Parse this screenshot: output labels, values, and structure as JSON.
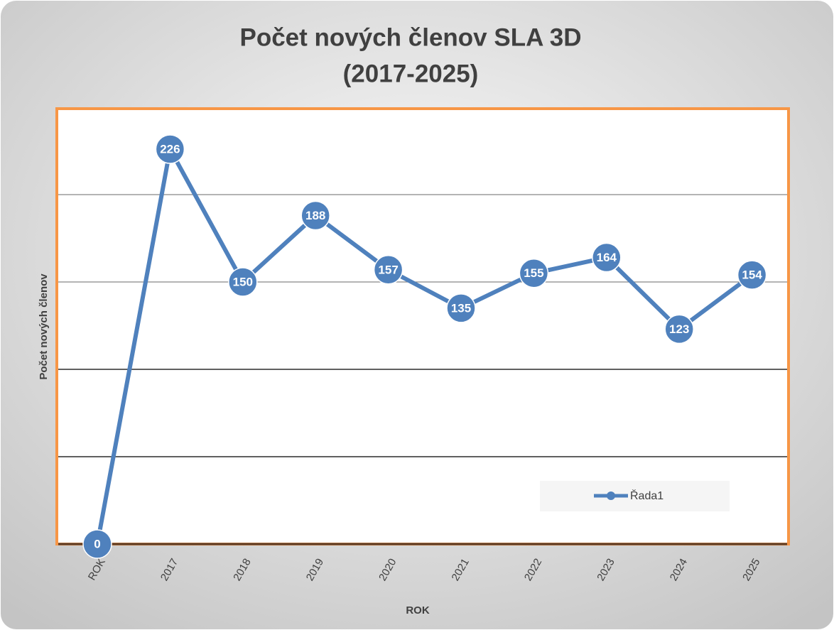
{
  "chart_data": {
    "type": "line",
    "title": [
      "Počet nových členov SLA 3D",
      "(2017-2025)"
    ],
    "x_label": "ROK",
    "y_label": "Počet nových členov",
    "categories": [
      "ROK",
      "2017",
      "2018",
      "2019",
      "2020",
      "2021",
      "2022",
      "2023",
      "2024",
      "2025"
    ],
    "series": [
      {
        "name": "Řada1",
        "color": "#4f81bd",
        "values": [
          0,
          226,
          150,
          188,
          157,
          135,
          155,
          164,
          123,
          154
        ]
      }
    ],
    "ylim": [
      0,
      250
    ],
    "yticks": [
      0,
      50,
      100,
      150,
      200,
      250
    ],
    "grid": true,
    "legend": "lower right"
  }
}
